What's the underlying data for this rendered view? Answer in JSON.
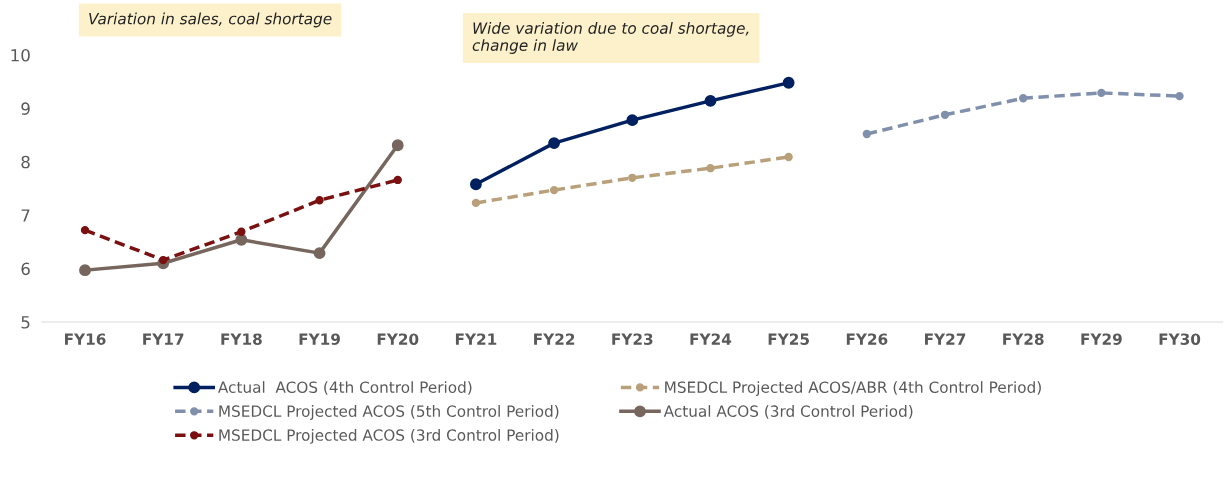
{
  "chart_data": {
    "type": "line",
    "categories": [
      "FY16",
      "FY17",
      "FY18",
      "FY19",
      "FY20",
      "FY21",
      "FY22",
      "FY23",
      "FY24",
      "FY25",
      "FY26",
      "FY27",
      "FY28",
      "FY29",
      "FY30"
    ],
    "series": [
      {
        "name": "Actual  ACOS (4th Control Period)",
        "color": "#002060",
        "line_style": "solid",
        "values": [
          null,
          null,
          null,
          null,
          null,
          7.58,
          8.35,
          8.78,
          9.14,
          9.48,
          null,
          null,
          null,
          null,
          null
        ]
      },
      {
        "name": "MSEDCL Projected ACOS/ABR (4th Control Period)",
        "color": "#b8a07a",
        "line_style": "dashed",
        "values": [
          null,
          null,
          null,
          null,
          null,
          7.23,
          7.47,
          7.7,
          7.88,
          8.09,
          null,
          null,
          null,
          null,
          null
        ]
      },
      {
        "name": "MSEDCL Projected ACOS (5th Control Period)",
        "color": "#8090ac",
        "line_style": "dashed",
        "values": [
          null,
          null,
          null,
          null,
          null,
          null,
          null,
          null,
          null,
          null,
          8.52,
          8.88,
          9.19,
          9.29,
          9.23
        ]
      },
      {
        "name": "Actual ACOS (3rd Control Period)",
        "color": "#76665e",
        "line_style": "solid",
        "values": [
          5.97,
          6.1,
          6.54,
          6.29,
          8.31,
          null,
          null,
          null,
          null,
          null,
          null,
          null,
          null,
          null,
          null
        ]
      },
      {
        "name": "MSEDCL Projected ACOS (3rd Control Period)",
        "color": "#7b1010",
        "line_style": "dashed",
        "values": [
          6.72,
          6.16,
          6.69,
          7.28,
          7.66,
          null,
          null,
          null,
          null,
          null,
          null,
          null,
          null,
          null,
          null
        ]
      }
    ],
    "ylim": [
      5,
      10
    ],
    "yticks": [
      5,
      6,
      7,
      8,
      9,
      10
    ],
    "grid": false,
    "legend": "bottom",
    "marker": "circle",
    "annotations": [
      "Variation in sales, coal shortage",
      "Wide variation due to coal shortage,\nchange in law"
    ]
  }
}
